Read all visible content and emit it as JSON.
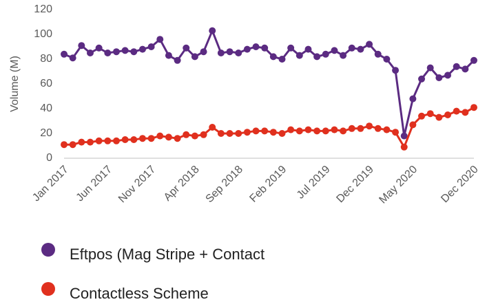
{
  "chart_data": {
    "type": "line",
    "y_label": "Volume (M)",
    "categories": [
      "Jan 2017",
      null,
      null,
      null,
      null,
      "Jun 2017",
      null,
      null,
      null,
      null,
      "Nov 2017",
      null,
      null,
      null,
      null,
      "Apr 2018",
      null,
      null,
      null,
      null,
      "Sep 2018",
      null,
      null,
      null,
      null,
      "Feb 2019",
      null,
      null,
      null,
      null,
      "Jul 2019",
      null,
      null,
      null,
      null,
      "Dec 2019",
      null,
      null,
      null,
      null,
      "May 2020",
      null,
      null,
      null,
      null,
      null,
      null,
      "Dec 2020"
    ],
    "series": [
      {
        "name": "Eftpos (Mag Stripe + Contact",
        "color": "#5b2b82",
        "values": [
          84,
          81,
          91,
          85,
          89,
          85,
          86,
          87,
          86,
          88,
          90,
          96,
          83,
          79,
          89,
          82,
          86,
          103,
          85,
          86,
          85,
          88,
          90,
          89,
          82,
          80,
          89,
          83,
          88,
          82,
          84,
          87,
          83,
          89,
          88,
          92,
          84,
          80,
          71,
          18,
          48,
          64,
          73,
          65,
          67,
          74,
          72,
          79
        ]
      },
      {
        "name": "Contactless Scheme",
        "color": "#e0301e",
        "values": [
          11,
          11,
          13,
          13,
          14,
          14,
          14,
          15,
          15,
          16,
          16,
          18,
          17,
          16,
          19,
          18,
          19,
          25,
          20,
          20,
          20,
          21,
          22,
          22,
          21,
          20,
          23,
          22,
          23,
          22,
          22,
          23,
          22,
          24,
          24,
          26,
          24,
          23,
          21,
          9,
          27,
          34,
          36,
          33,
          35,
          38,
          37,
          41
        ]
      }
    ],
    "ylim": [
      0,
      120
    ],
    "yticks": [
      0,
      20,
      40,
      60,
      80,
      100,
      120
    ],
    "grid": false
  }
}
